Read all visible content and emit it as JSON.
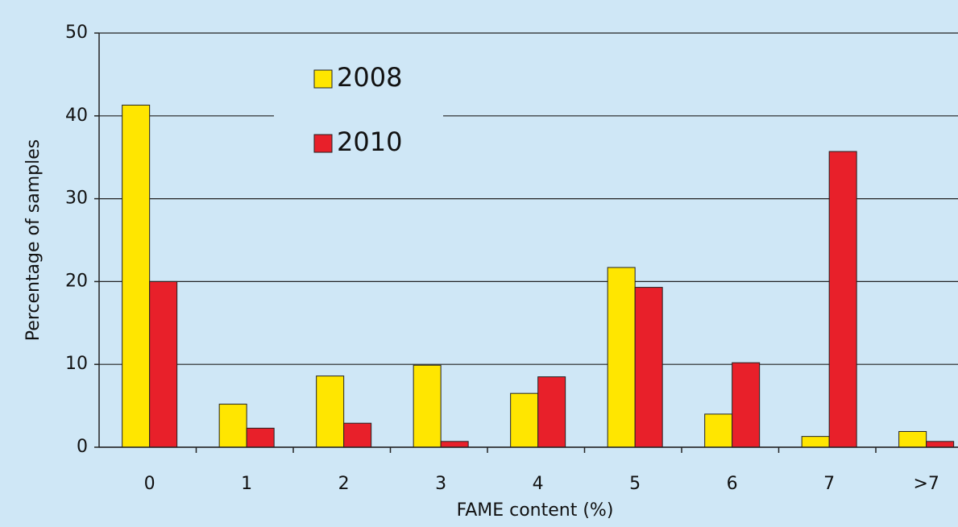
{
  "chart_data": {
    "type": "bar",
    "categories": [
      "0",
      "1",
      "2",
      "3",
      "4",
      "5",
      "6",
      "7",
      ">7"
    ],
    "series": [
      {
        "name": "2008",
        "color": "#ffe600",
        "values": [
          41.3,
          5.2,
          8.6,
          9.9,
          6.5,
          21.7,
          4.0,
          1.3,
          1.9
        ]
      },
      {
        "name": "2010",
        "color": "#e8202a",
        "values": [
          20.0,
          2.3,
          2.9,
          0.7,
          8.5,
          19.3,
          10.2,
          35.7,
          0.7
        ]
      }
    ],
    "xlabel": "FAME content (%)",
    "ylabel": "Percentage of samples",
    "ylim": [
      0,
      50
    ],
    "yticks": [
      0,
      10,
      20,
      30,
      40,
      50
    ],
    "grid": true,
    "legend": "top-left"
  }
}
